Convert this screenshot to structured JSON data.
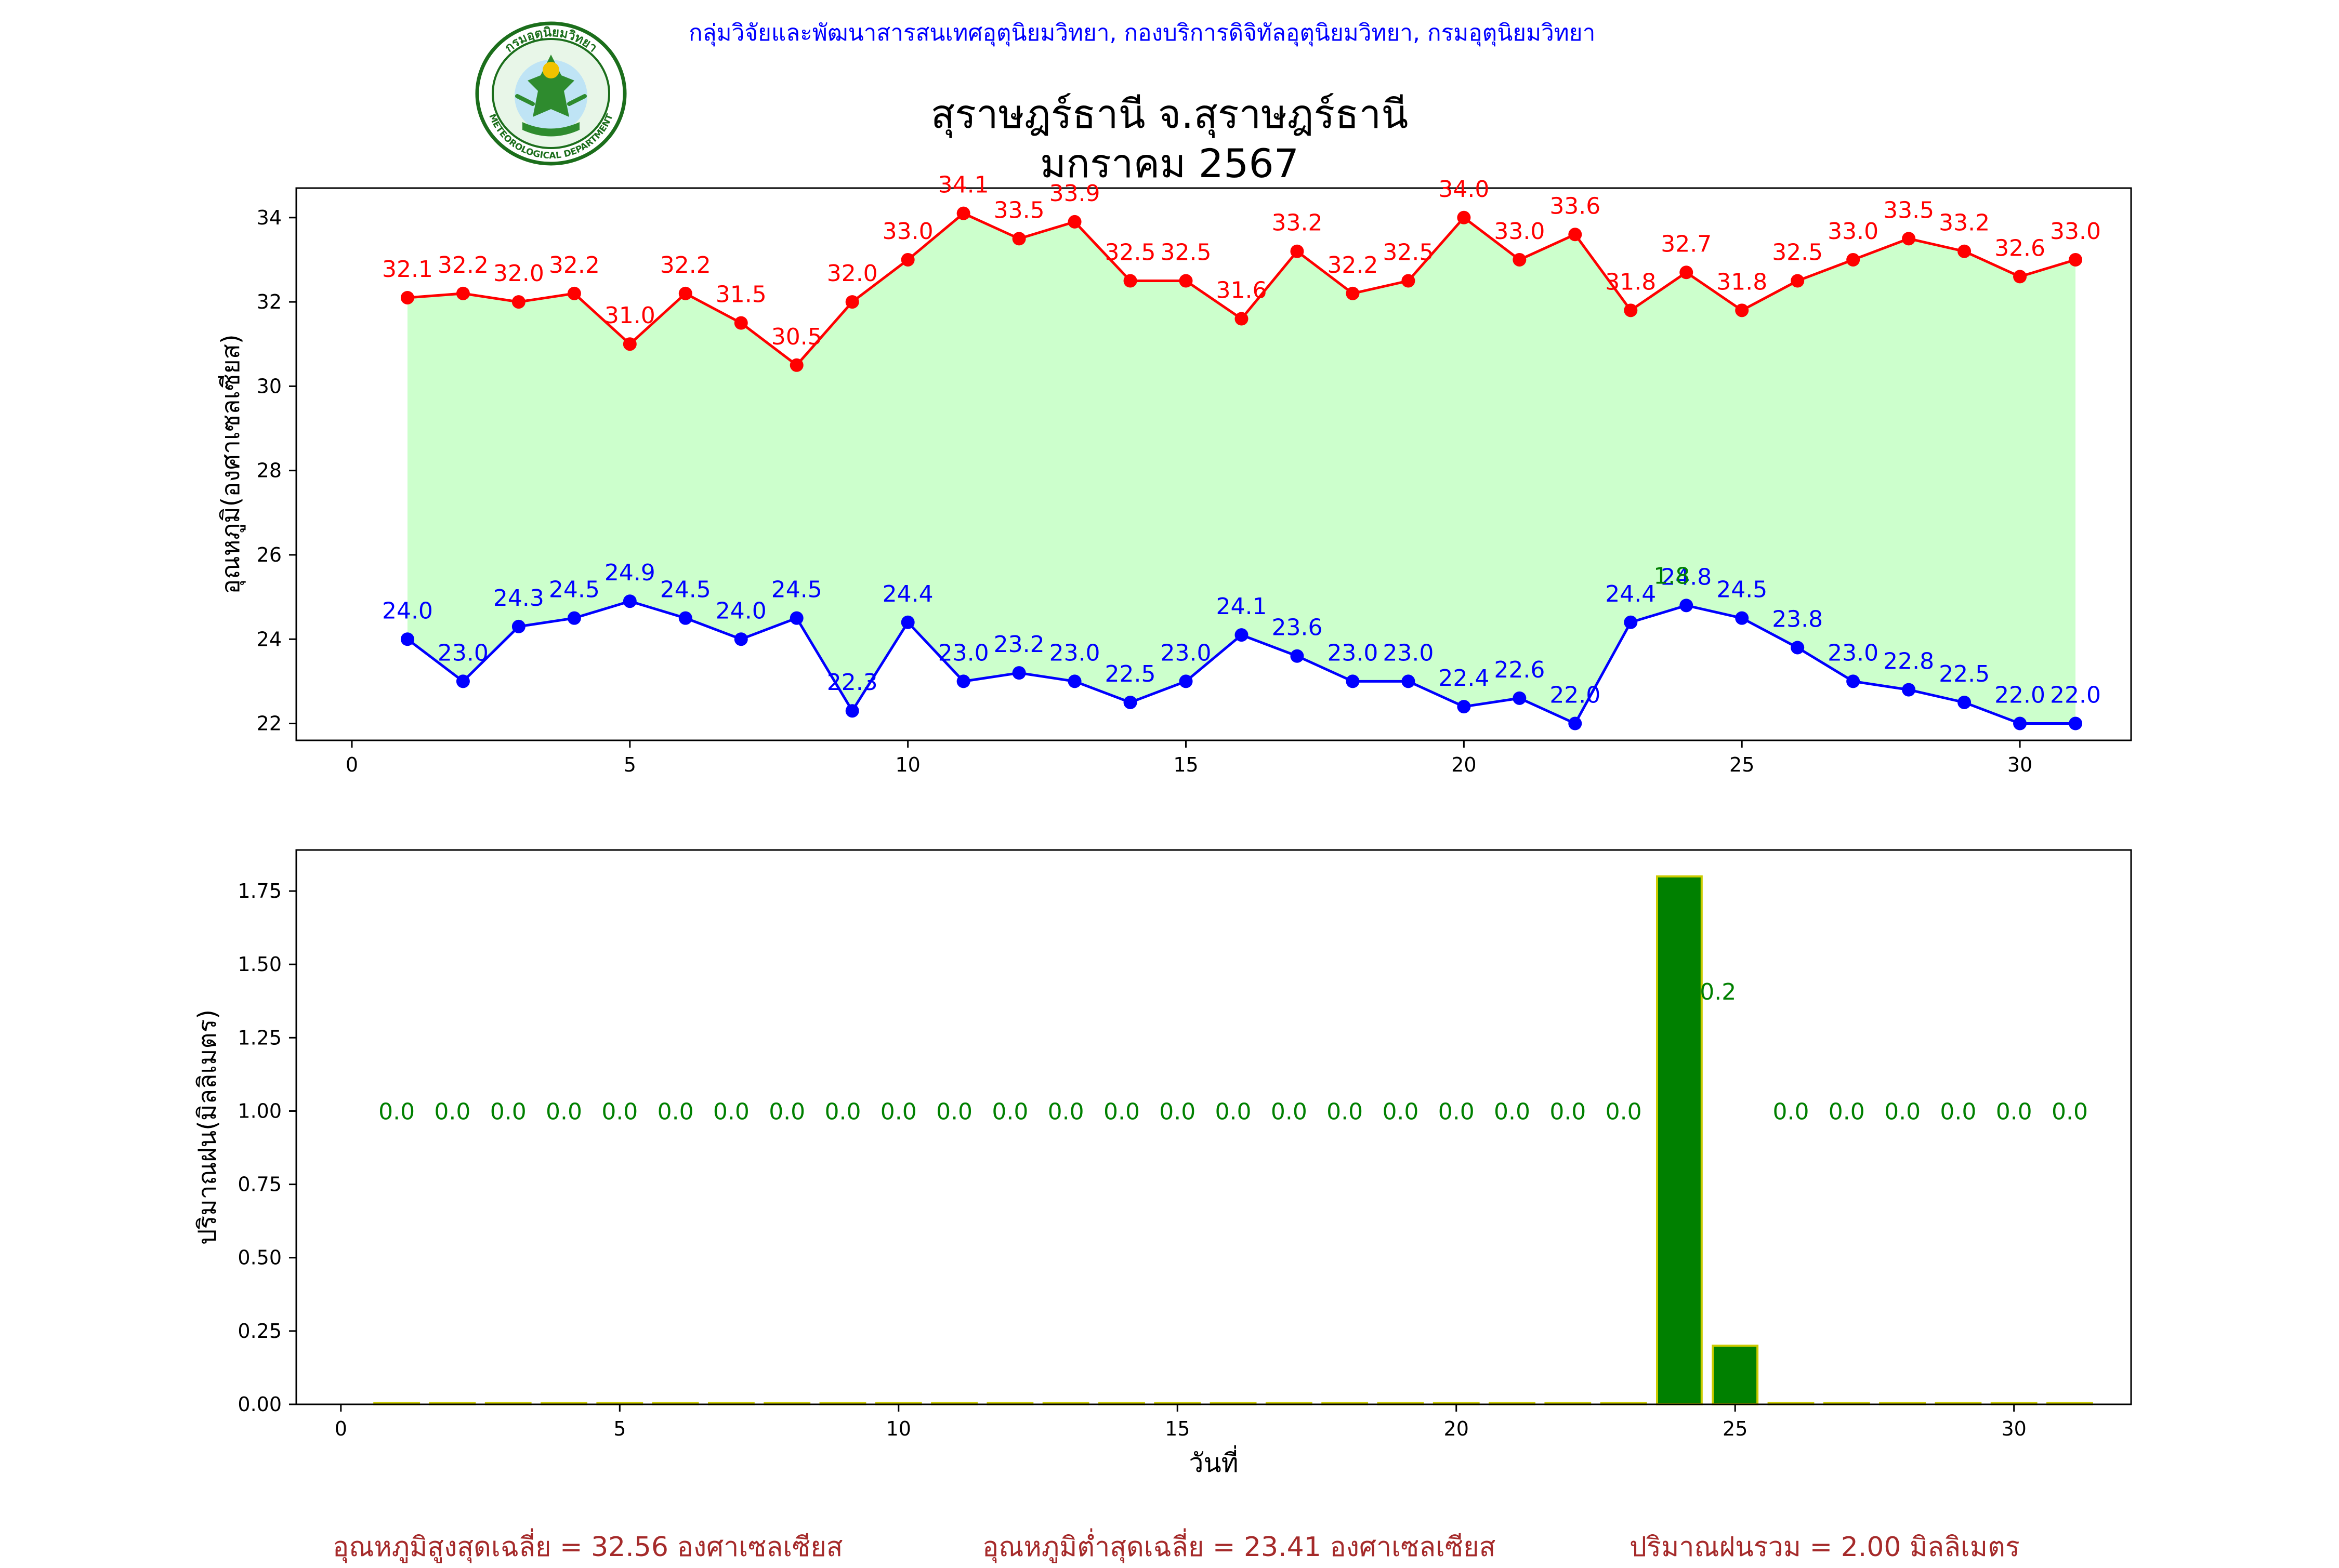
{
  "header": {
    "org_line": "กลุ่มวิจัยและพัฒนาสารสนเทศอุตุนิยมวิทยา, กองบริการดิจิทัลอุตุนิยมวิทยา, กรมอุตุนิยมวิทยา",
    "title_line1": "สุราษฎร์ธานี จ.สุราษฎร์ธานี",
    "title_line2": "มกราคม 2567"
  },
  "logo": {
    "text_top": "กรมอุตุนิยมวิทยา",
    "text_bottom": "METEOROLOGICAL DEPARTMENT",
    "icon": "meteorological-department-seal-icon"
  },
  "summary": {
    "max_avg": "อุณหภูมิสูงสุดเฉลี่ย = 32.56 องศาเซลเซียส",
    "min_avg": "อุณหภูมิต่ำสุดเฉลี่ย = 23.41 องศาเซลเซียส",
    "rain_total": "ปริมาณฝนรวม = 2.00 มิลลิเมตร"
  },
  "colors": {
    "max_line": "#ff0000",
    "min_line": "#0000ff",
    "fill": "#ccffcc",
    "rain_bar": "#008000",
    "rain_edge": "#cccc00",
    "rain_label": "#008000",
    "summary_text": "#a52a2a"
  },
  "chart_data": [
    {
      "type": "line",
      "ylabel": "อุณหภูมิ(องศาเซลเซียส)",
      "xlabel": "",
      "xlim": [
        -1,
        32
      ],
      "ylim": [
        21.6,
        34.7
      ],
      "xticks": [
        0,
        5,
        10,
        15,
        20,
        25,
        30
      ],
      "yticks": [
        22,
        24,
        26,
        28,
        30,
        32,
        34
      ],
      "x": [
        1,
        2,
        3,
        4,
        5,
        6,
        7,
        8,
        9,
        10,
        11,
        12,
        13,
        14,
        15,
        16,
        17,
        18,
        19,
        20,
        21,
        22,
        23,
        24,
        25,
        26,
        27,
        28,
        29,
        30,
        31
      ],
      "series": [
        {
          "values": [
            32.1,
            32.2,
            32.0,
            32.2,
            31.0,
            32.2,
            31.5,
            30.5,
            32.0,
            33.0,
            34.1,
            33.5,
            33.9,
            32.5,
            32.5,
            31.6,
            33.2,
            32.2,
            32.5,
            34.0,
            33.0,
            33.6,
            31.8,
            32.7,
            31.8,
            32.5,
            33.0,
            33.5,
            33.2,
            32.6,
            33.0
          ]
        },
        {
          "values": [
            24.0,
            23.0,
            24.3,
            24.5,
            24.9,
            24.5,
            24.0,
            24.5,
            22.3,
            24.4,
            23.0,
            23.2,
            23.0,
            22.5,
            23.0,
            24.1,
            23.6,
            23.0,
            23.0,
            22.4,
            22.6,
            22.0,
            24.4,
            24.8,
            24.5,
            23.8,
            23.0,
            22.8,
            22.5,
            22.0,
            22.0
          ]
        }
      ],
      "overlay_label": {
        "x": 24,
        "text": "1.8"
      }
    },
    {
      "type": "bar",
      "ylabel": "ปริมาณฝน(มิลลิเมตร)",
      "xlabel": "วันที่",
      "xlim": [
        -0.8,
        32.1
      ],
      "ylim": [
        0,
        1.89
      ],
      "xticks": [
        0,
        5,
        10,
        15,
        20,
        25,
        30
      ],
      "yticks": [
        "0.00",
        "0.25",
        "0.50",
        "0.75",
        "1.00",
        "1.25",
        "1.50",
        "1.75"
      ],
      "x": [
        1,
        2,
        3,
        4,
        5,
        6,
        7,
        8,
        9,
        10,
        11,
        12,
        13,
        14,
        15,
        16,
        17,
        18,
        19,
        20,
        21,
        22,
        23,
        24,
        25,
        26,
        27,
        28,
        29,
        30,
        31
      ],
      "values": [
        0,
        0,
        0,
        0,
        0,
        0,
        0,
        0,
        0,
        0,
        0,
        0,
        0,
        0,
        0,
        0,
        0,
        0,
        0,
        0,
        0,
        0,
        0,
        1.8,
        0.2,
        0,
        0,
        0,
        0,
        0,
        0
      ],
      "labels": [
        "0.0",
        "0.0",
        "0.0",
        "0.0",
        "0.0",
        "0.0",
        "0.0",
        "0.0",
        "0.0",
        "0.0",
        "0.0",
        "0.0",
        "0.0",
        "0.0",
        "0.0",
        "0.0",
        "0.0",
        "0.0",
        "0.0",
        "0.0",
        "0.0",
        "0.0",
        "0.0",
        "",
        "0.2",
        "0.0",
        "0.0",
        "0.0",
        "0.0",
        "0.0",
        "0.0"
      ],
      "label_y": 1.0
    }
  ]
}
